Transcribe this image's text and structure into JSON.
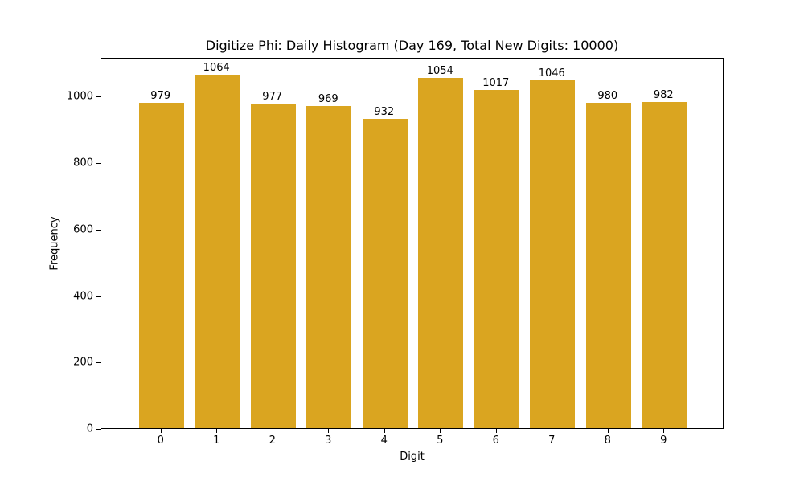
{
  "chart_data": {
    "type": "bar",
    "title": "Digitize Phi: Daily Histogram (Day 169, Total New Digits: 10000)",
    "xlabel": "Digit",
    "ylabel": "Frequency",
    "categories": [
      "0",
      "1",
      "2",
      "3",
      "4",
      "5",
      "6",
      "7",
      "8",
      "9"
    ],
    "values": [
      979,
      1064,
      977,
      969,
      932,
      1054,
      1017,
      1046,
      980,
      982
    ],
    "data_labels": [
      "979",
      "1064",
      "977",
      "969",
      "932",
      "1054",
      "1017",
      "1046",
      "980",
      "982"
    ],
    "ylim": [
      0,
      1117
    ],
    "yticks": [
      0,
      200,
      400,
      600,
      800,
      1000
    ],
    "ytick_labels": [
      "0",
      "200",
      "400",
      "600",
      "800",
      "1000"
    ],
    "grid": false,
    "legend": null,
    "bar_color": "#DAA520"
  }
}
